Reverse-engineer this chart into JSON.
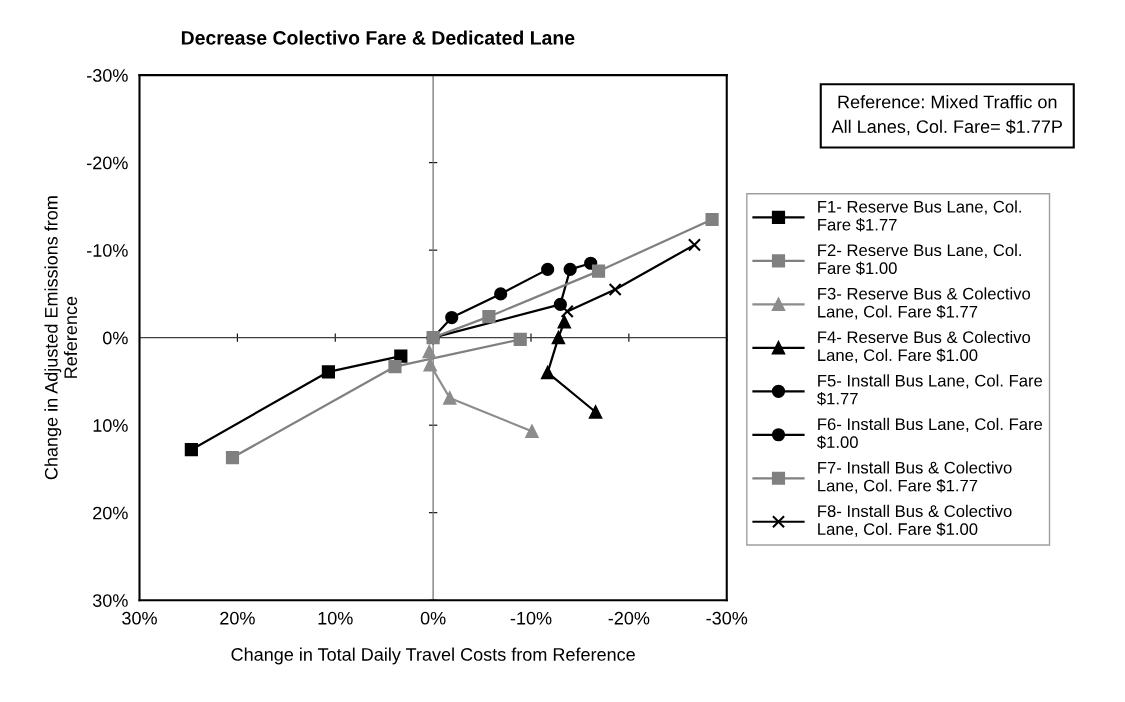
{
  "chart_data": {
    "type": "line",
    "title": "Decrease Colectivo Fare & Dedicated Lane",
    "xlabel": "Change in Total Daily Travel Costs from Reference",
    "ylabel": "Change in Adjusted Emissions from\nReference",
    "annotations": [
      "Reference: Mixed Traffic on\nAll Lanes, Col. Fare= $1.77P"
    ],
    "xlim": [
      30,
      -30
    ],
    "ylim": [
      30,
      -30
    ],
    "xticks": [
      {
        "value": 30,
        "label": "30%"
      },
      {
        "value": 20,
        "label": "20%"
      },
      {
        "value": 10,
        "label": "10%"
      },
      {
        "value": 0,
        "label": "0%"
      },
      {
        "value": -10,
        "label": "-10%"
      },
      {
        "value": -20,
        "label": "-20%"
      },
      {
        "value": -30,
        "label": "-30%"
      }
    ],
    "yticks": [
      {
        "value": -30,
        "label": "-30%"
      },
      {
        "value": -20,
        "label": "-20%"
      },
      {
        "value": -10,
        "label": "-10%"
      },
      {
        "value": 0,
        "label": "0%"
      },
      {
        "value": 10,
        "label": "10%"
      },
      {
        "value": 20,
        "label": "20%"
      },
      {
        "value": 30,
        "label": "30%"
      }
    ],
    "legend": "right",
    "ref_lines": [
      {
        "axis": "x",
        "value": 0,
        "color": "#707070"
      },
      {
        "axis": "y",
        "value": 0,
        "color": "#404040"
      }
    ],
    "series": [
      {
        "name": "F1- Reserve Bus Lane, Col.\nFare $1.77",
        "color": "#000000",
        "marker": "square",
        "x": [
          24.7,
          10.7,
          3.3
        ],
        "values": [
          12.8,
          3.9,
          2.1
        ]
      },
      {
        "name": "F2- Reserve Bus Lane, Col.\nFare $1.00",
        "color": "#808080",
        "marker": "square",
        "x": [
          20.5,
          3.9,
          -8.9
        ],
        "values": [
          13.7,
          3.3,
          0.2
        ]
      },
      {
        "name": "F3- Reserve Bus & Colectivo\nLane, Col. Fare $1.77",
        "color": "#8c8c8c",
        "marker": "triangle",
        "x": [
          0.4,
          0.3,
          -1.7,
          -10.1
        ],
        "values": [
          1.6,
          3.1,
          6.9,
          10.7
        ]
      },
      {
        "name": "F4- Reserve Bus & Colectivo\nLane, Col. Fare $1.00",
        "color": "#000000",
        "marker": "triangle",
        "x": [
          -13.4,
          -12.8,
          -11.7,
          -16.6
        ],
        "values": [
          -1.8,
          0,
          4.0,
          8.5
        ]
      },
      {
        "name": "F5- Install Bus Lane, Col. Fare\n$1.77",
        "color": "#000000",
        "marker": "circle",
        "x": [
          0,
          -1.9,
          -6.9,
          -11.7
        ],
        "values": [
          0,
          -2.3,
          -5.0,
          -7.8
        ]
      },
      {
        "name": "F6- Install Bus Lane, Col. Fare\n$1.00",
        "color": "#000000",
        "marker": "circle",
        "x": [
          0,
          -13.0,
          -14.0,
          -16.1
        ],
        "values": [
          0,
          -3.8,
          -7.8,
          -8.5
        ]
      },
      {
        "name": "F7- Install Bus & Colectivo\nLane, Col. Fare $1.77",
        "color": "#808080",
        "marker": "square",
        "x": [
          0,
          -5.7,
          -16.9,
          -28.5
        ],
        "values": [
          0,
          -2.4,
          -7.6,
          -13.5
        ]
      },
      {
        "name": "F8- Install Bus & Colectivo\nLane, Col. Fare $1.00",
        "color": "#000000",
        "marker": "cross",
        "x": [
          -13.7,
          -18.6,
          -26.7
        ],
        "values": [
          -3.0,
          -5.5,
          -10.6
        ]
      }
    ]
  }
}
